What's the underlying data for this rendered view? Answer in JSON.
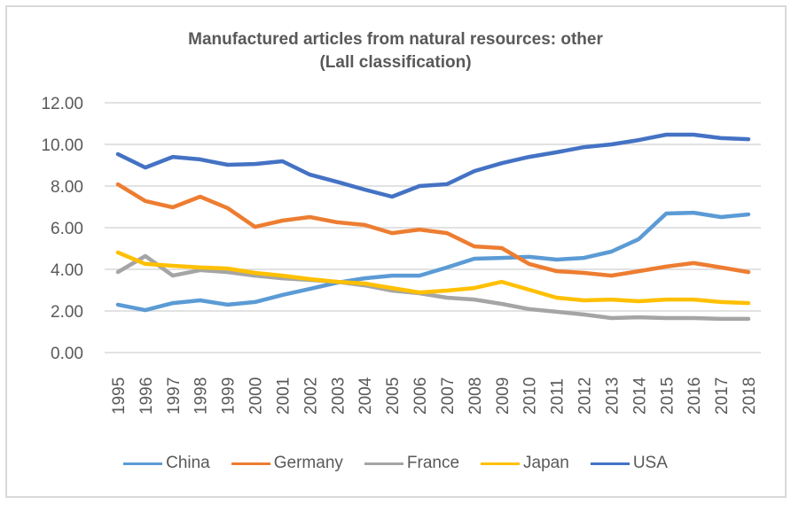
{
  "chart_data": {
    "type": "line",
    "title_line1": "Manufactured articles from natural resources: other",
    "title_line2": "(Lall classification)",
    "xlabel": "",
    "ylabel": "",
    "ylim": [
      0,
      12
    ],
    "yticks": [
      "0.00",
      "2.00",
      "4.00",
      "6.00",
      "8.00",
      "10.00",
      "12.00"
    ],
    "grid": true,
    "legend_position": "bottom",
    "x": [
      "1995",
      "1996",
      "1997",
      "1998",
      "1999",
      "2000",
      "2001",
      "2002",
      "2003",
      "2004",
      "2005",
      "2006",
      "2007",
      "2008",
      "2009",
      "2010",
      "2011",
      "2012",
      "2013",
      "2014",
      "2015",
      "2016",
      "2017",
      "2018"
    ],
    "series": [
      {
        "name": "China",
        "color": "#5b9bd5",
        "values": [
          2.3,
          2.04,
          2.38,
          2.51,
          2.3,
          2.43,
          2.77,
          3.06,
          3.36,
          3.57,
          3.7,
          3.7,
          4.09,
          4.51,
          4.55,
          4.6,
          4.47,
          4.55,
          4.85,
          5.45,
          6.68,
          6.72,
          6.51,
          6.64
        ]
      },
      {
        "name": "Germany",
        "color": "#ed7d31",
        "values": [
          8.08,
          7.28,
          6.98,
          7.49,
          6.94,
          6.04,
          6.34,
          6.51,
          6.26,
          6.13,
          5.74,
          5.91,
          5.74,
          5.1,
          5.02,
          4.26,
          3.91,
          3.83,
          3.7,
          3.91,
          4.13,
          4.3,
          4.09,
          3.87
        ]
      },
      {
        "name": "France",
        "color": "#a5a5a5",
        "values": [
          3.87,
          4.64,
          3.7,
          3.96,
          3.87,
          3.7,
          3.57,
          3.49,
          3.4,
          3.23,
          2.98,
          2.85,
          2.64,
          2.55,
          2.34,
          2.09,
          1.96,
          1.83,
          1.66,
          1.7,
          1.66,
          1.66,
          1.62,
          1.62
        ]
      },
      {
        "name": "Japan",
        "color": "#ffc000",
        "values": [
          4.81,
          4.26,
          4.17,
          4.09,
          4.04,
          3.83,
          3.7,
          3.53,
          3.4,
          3.32,
          3.1,
          2.89,
          2.98,
          3.1,
          3.4,
          3.02,
          2.64,
          2.51,
          2.55,
          2.47,
          2.55,
          2.55,
          2.43,
          2.38
        ]
      },
      {
        "name": "USA",
        "color": "#4472c4",
        "values": [
          9.53,
          8.89,
          9.4,
          9.28,
          9.02,
          9.06,
          9.19,
          8.55,
          8.2,
          7.83,
          7.49,
          8.0,
          8.09,
          8.72,
          9.1,
          9.4,
          9.62,
          9.87,
          10.0,
          10.21,
          10.47,
          10.47,
          10.3,
          10.25
        ]
      }
    ]
  }
}
